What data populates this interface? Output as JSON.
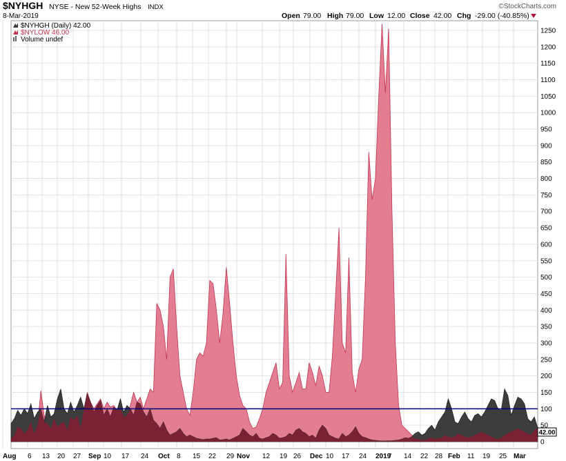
{
  "header": {
    "symbol": "$NYHGH",
    "description": "NYSE - New 52-Week Highs",
    "exchange": "INDX",
    "date": "8-Mar-2019",
    "copyright": "©StockCharts.com",
    "open_label": "Open",
    "open_value": "79.00",
    "high_label": "High",
    "high_value": "79.00",
    "low_label": "Low",
    "low_value": "12.00",
    "close_label": "Close",
    "close_value": "42.00",
    "chg_label": "Chg",
    "chg_value": "-29.00 (-40.85%)"
  },
  "legend": {
    "primary": "$NYHGH (Daily) 42.00",
    "secondary": "$NYLOW 46.00",
    "volume": "Volume undef"
  },
  "last_value_tag": "42.00",
  "colors": {
    "nyhgh_fill": "#3d3d3d",
    "nylow_fill": "#e37d91",
    "nylow_line": "#c2334f",
    "overlap": "#7a2233",
    "ref_line": "#000080",
    "grid": "#e2e2e2",
    "down_arrow": "#b01035"
  },
  "chart_data": {
    "type": "area",
    "ylim": [
      0,
      1300
    ],
    "y_ticks": [
      0,
      50,
      100,
      150,
      200,
      250,
      300,
      350,
      400,
      450,
      500,
      550,
      600,
      650,
      700,
      750,
      800,
      850,
      900,
      950,
      1000,
      1050,
      1100,
      1150,
      1200,
      1250
    ],
    "horizontal_line": 100,
    "x_tick_labels": [
      "Aug",
      "6",
      "13",
      "20",
      "27",
      "Sep",
      "10",
      "17",
      "24",
      "Oct",
      "8",
      "15",
      "22",
      "29",
      "Nov",
      "12",
      "19",
      "26",
      "Dec",
      "10",
      "17",
      "24",
      "2019",
      "7",
      "14",
      "22",
      "28",
      "Feb",
      "11",
      "19",
      "25",
      "Mar"
    ],
    "x_tick_bold": [
      "Aug",
      "Sep",
      "Oct",
      "Nov",
      "Dec",
      "2019",
      "Feb",
      "Mar"
    ],
    "series": [
      {
        "name": "$NYHGH",
        "values": [
          55,
          70,
          95,
          80,
          100,
          85,
          115,
          70,
          90,
          100,
          60,
          110,
          75,
          85,
          130,
          160,
          100,
          85,
          120,
          90,
          110,
          135,
          100,
          145,
          120,
          90,
          110,
          125,
          80,
          100,
          75,
          105,
          95,
          130,
          90,
          110,
          100,
          80,
          120,
          115,
          90,
          75,
          100,
          65,
          55,
          40,
          60,
          35,
          20,
          25,
          30,
          40,
          25,
          15,
          20,
          15,
          10,
          8,
          6,
          8,
          8,
          10,
          12,
          5,
          6,
          8,
          5,
          10,
          15,
          20,
          40,
          30,
          20,
          15,
          25,
          10,
          8,
          12,
          15,
          25,
          20,
          10,
          12,
          15,
          25,
          20,
          35,
          40,
          30,
          25,
          15,
          20,
          10,
          35,
          50,
          40,
          20,
          15,
          10,
          8,
          25,
          15,
          20,
          30,
          45,
          25,
          15,
          12,
          8,
          5,
          4,
          3,
          2,
          2,
          3,
          3,
          4,
          5,
          8,
          12,
          10,
          15,
          25,
          30,
          20,
          25,
          40,
          50,
          35,
          60,
          75,
          90,
          130,
          100,
          60,
          55,
          75,
          90,
          70,
          60,
          80,
          85,
          75,
          90,
          110,
          130,
          125,
          100,
          95,
          160,
          140,
          80,
          110,
          135,
          130,
          115,
          70,
          60,
          75,
          42
        ]
      },
      {
        "name": "$NYLOW",
        "values": [
          10,
          20,
          45,
          40,
          25,
          35,
          60,
          25,
          50,
          155,
          80,
          55,
          40,
          70,
          45,
          55,
          60,
          35,
          75,
          65,
          80,
          40,
          95,
          150,
          120,
          100,
          115,
          130,
          100,
          120,
          105,
          110,
          95,
          100,
          75,
          80,
          110,
          150,
          120,
          135,
          100,
          130,
          160,
          150,
          420,
          400,
          350,
          250,
          500,
          525,
          350,
          200,
          150,
          100,
          80,
          150,
          250,
          270,
          260,
          300,
          490,
          480,
          400,
          300,
          390,
          530,
          420,
          300,
          200,
          140,
          110,
          100,
          60,
          40,
          45,
          70,
          100,
          150,
          180,
          210,
          240,
          160,
          180,
          570,
          200,
          150,
          180,
          210,
          160,
          160,
          240,
          210,
          170,
          230,
          200,
          150,
          150,
          260,
          450,
          650,
          300,
          270,
          560,
          210,
          150,
          220,
          250,
          500,
          880,
          735,
          800,
          1050,
          1270,
          1060,
          1255,
          700,
          300,
          110,
          50,
          40,
          30,
          20,
          10,
          8,
          5,
          5,
          10,
          12,
          8,
          10,
          12,
          20,
          15,
          12,
          15,
          25,
          20,
          15,
          12,
          15,
          20,
          25,
          30,
          25,
          20,
          15,
          10,
          8,
          12,
          20,
          25,
          30,
          35,
          40,
          35,
          30,
          25,
          20,
          35,
          46
        ]
      }
    ]
  }
}
